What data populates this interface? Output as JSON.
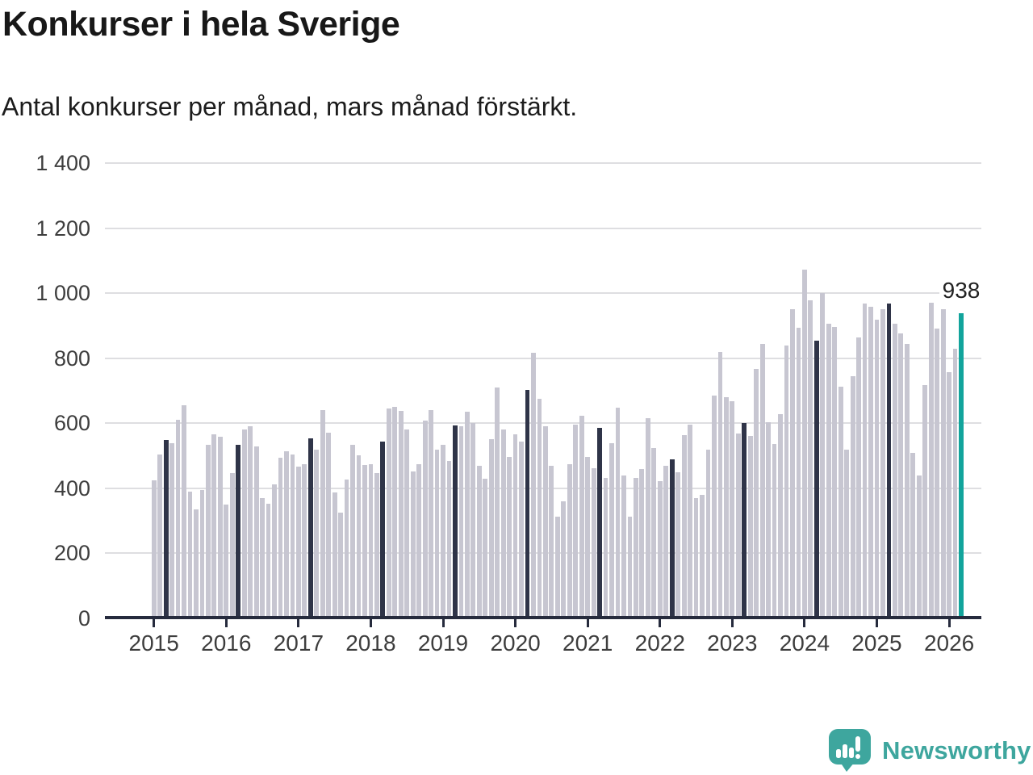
{
  "header": {
    "title": "Konkurser i hela Sverige",
    "subtitle": "Antal konkurser per månad, mars månad förstärkt."
  },
  "chart_data": {
    "type": "bar",
    "title": "Konkurser i hela Sverige",
    "subtitle": "Antal konkurser per månad, mars månad förstärkt.",
    "xlabel": "",
    "ylabel": "",
    "ylim": [
      0,
      1400
    ],
    "grid": true,
    "legend_position": "none",
    "y_ticks": [
      {
        "value": 0,
        "label": "0"
      },
      {
        "value": 200,
        "label": "200"
      },
      {
        "value": 400,
        "label": "400"
      },
      {
        "value": 600,
        "label": "600"
      },
      {
        "value": 800,
        "label": "800"
      },
      {
        "value": 1000,
        "label": "1 000"
      },
      {
        "value": 1200,
        "label": "1 200"
      },
      {
        "value": 1400,
        "label": "1 400"
      }
    ],
    "series": [
      {
        "year": "2015",
        "values": [
          425,
          505,
          548,
          540,
          610,
          655,
          390,
          335,
          395,
          533,
          565,
          558
        ]
      },
      {
        "year": "2016",
        "values": [
          350,
          447,
          535,
          580,
          590,
          528,
          370,
          353,
          412,
          495,
          515,
          503
        ]
      },
      {
        "year": "2017",
        "values": [
          468,
          475,
          553,
          520,
          640,
          570,
          387,
          326,
          428,
          533,
          501,
          472
        ]
      },
      {
        "year": "2018",
        "values": [
          475,
          446,
          543,
          645,
          650,
          637,
          582,
          452,
          474,
          609,
          641,
          519
        ]
      },
      {
        "year": "2019",
        "values": [
          533,
          485,
          594,
          592,
          635,
          602,
          470,
          429,
          551,
          710,
          582,
          497
        ]
      },
      {
        "year": "2020",
        "values": [
          566,
          543,
          703,
          818,
          676,
          592,
          470,
          314,
          360,
          474,
          596,
          623
        ]
      },
      {
        "year": "2021",
        "values": [
          497,
          462,
          586,
          432,
          539,
          649,
          440,
          314,
          432,
          460,
          615,
          525
        ]
      },
      {
        "year": "2022",
        "values": [
          421,
          470,
          490,
          450,
          564,
          596,
          371,
          380,
          519,
          684,
          820,
          680
        ]
      },
      {
        "year": "2023",
        "values": [
          668,
          569,
          600,
          562,
          768,
          844,
          603,
          537,
          628,
          840,
          950,
          894
        ]
      },
      {
        "year": "2024",
        "values": [
          1072,
          977,
          853,
          1000,
          907,
          897,
          712,
          520,
          745,
          863,
          967,
          958
        ]
      },
      {
        "year": "2025",
        "values": [
          919,
          950,
          968,
          907,
          876,
          845,
          510,
          439,
          718,
          970,
          892,
          950
        ]
      },
      {
        "year": "2026",
        "values": [
          758,
          830,
          938
        ]
      }
    ],
    "march_month_index": 2,
    "annotation": {
      "text": "938",
      "value": 938,
      "year": "2026",
      "month_index": 2
    },
    "colors": {
      "bar": "#c7c6d1",
      "march_bar": "#2f3448",
      "highlight_bar": "#12a49c",
      "axis": "#262b3d",
      "grid": "#dedee1",
      "tick_label": "#3d3d3d"
    }
  },
  "footer": {
    "brand": "Newsworthy",
    "brand_color": "#3ea69e",
    "logo_icon": "bar-chart-speech-pin-icon"
  }
}
